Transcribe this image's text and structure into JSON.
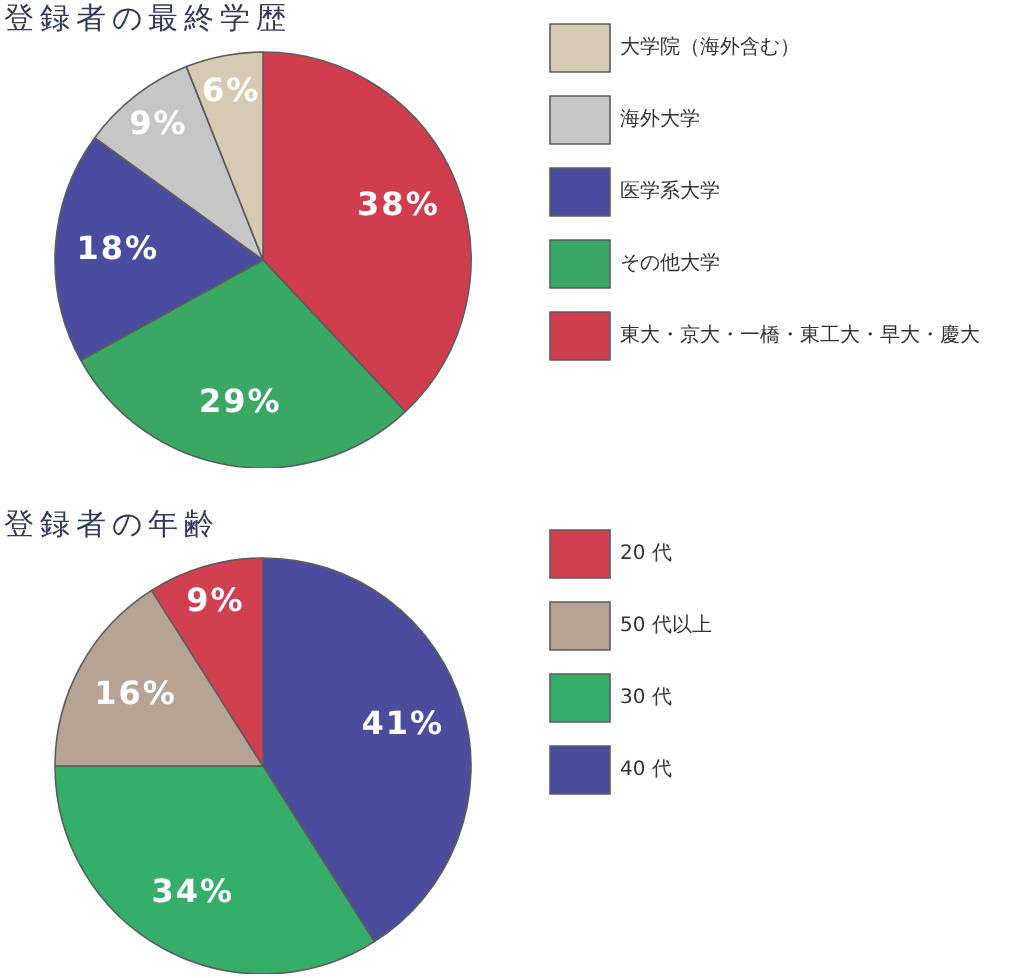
{
  "chart_data": [
    {
      "type": "pie",
      "title": "登録者の最終学歴",
      "categories": [
        "東大・京大・一橋・東工大・早大・慶大",
        "その他大学",
        "医学系大学",
        "海外大学",
        "大学院（海外含む）"
      ],
      "values": [
        38,
        29,
        18,
        9,
        6
      ],
      "value_labels": [
        "38%",
        "29%",
        "18%",
        "9%",
        "6%"
      ],
      "colors": [
        "#d03d4e",
        "#39a864",
        "#4a4c9f",
        "#c5c6c6",
        "#d6cab3"
      ],
      "legend": "top right"
    },
    {
      "type": "pie",
      "title": "登録者の年齢",
      "categories": [
        "40 代",
        "30 代",
        "50 代以上",
        "20 代"
      ],
      "values": [
        41,
        34,
        16,
        9
      ],
      "value_labels": [
        "41%",
        "34%",
        "16%",
        "9%"
      ],
      "colors": [
        "#4c4c9e",
        "#35ae69",
        "#b6a393",
        "#d13f50"
      ],
      "legend": "top right"
    }
  ]
}
